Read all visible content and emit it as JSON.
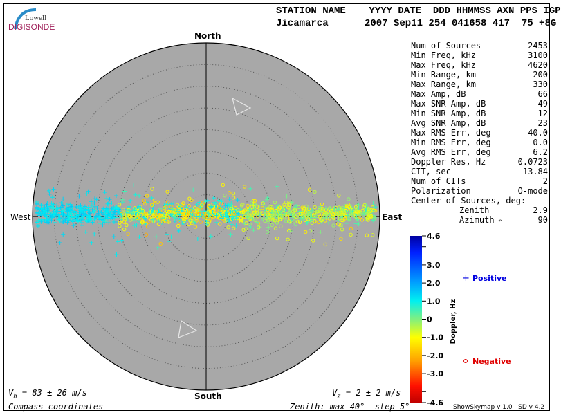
{
  "logo": {
    "line1": "Lowell",
    "line2": "DIGISONDE"
  },
  "header": {
    "labels": "STATION NAME    YYYY DATE  DDD HHMMSS AXN PPS IGP",
    "station": "Jicamarca",
    "values": "2007 Sep11 254 041658 417  75 +8G"
  },
  "stats": [
    {
      "label": "Num of Sources",
      "value": "2453"
    },
    {
      "label": "Min Freq, kHz",
      "value": "3100"
    },
    {
      "label": "Max Freq, kHz",
      "value": "4620"
    },
    {
      "label": "Min Range, km",
      "value": "200"
    },
    {
      "label": "Max Range, km",
      "value": "330"
    },
    {
      "label": "Max Amp, dB",
      "value": "66"
    },
    {
      "label": "Max SNR Amp, dB",
      "value": "49"
    },
    {
      "label": "Min SNR Amp, dB",
      "value": "12"
    },
    {
      "label": "Avg SNR Amp, dB",
      "value": "23"
    },
    {
      "label": "Max RMS Err, deg",
      "value": "40.0"
    },
    {
      "label": "Min RMS Err, deg",
      "value": "0.0"
    },
    {
      "label": "Avg RMS Err, deg",
      "value": "6.2"
    },
    {
      "label": "Doppler Res, Hz",
      "value": "0.0723"
    },
    {
      "label": "CIT, sec",
      "value": "13.84"
    },
    {
      "label": "Num of CITs",
      "value": "2"
    },
    {
      "label": "Polarization",
      "value": "O-mode"
    }
  ],
  "center": {
    "title": "Center of Sources, deg:",
    "zenith_label": "Zenith",
    "zenith": "2.9",
    "azimuth_label": "Azimuth",
    "azimuth_icon": "arrow-icon",
    "azimuth": "90"
  },
  "directions": {
    "north": "North",
    "south": "South",
    "west": "West",
    "east": "East"
  },
  "footer": {
    "vh": "V",
    "vh_sub": "h",
    "vh_val": " = 83 ± 26 m/s",
    "vz": "V",
    "vz_sub": "z",
    "vz_val": " = 2 ± 2 m/s",
    "coords": "Compass coordinates",
    "zenith": "Zenith: max 40°  step 5°",
    "version": "ShowSkymap v 1.0   SD v 4.2"
  },
  "chart_data": {
    "type": "scatter",
    "projection": "polar skymap",
    "zenith_max_deg": 40,
    "zenith_step_deg": 5,
    "num_sources": 2453,
    "distribution": "elongated East-West band along the horizontal axis",
    "colorbar": {
      "label": "Doppler, Hz",
      "range": [
        -4.6,
        4.6
      ],
      "tick_labels": [
        "4.6",
        "3.0",
        "2.0",
        "1.0",
        "0",
        "-1.0",
        "-2.0",
        "-3.0",
        "-4.6"
      ],
      "ticks": [
        4.6,
        3.0,
        2.0,
        1.0,
        0,
        -1.0,
        -2.0,
        -3.0,
        -4.6
      ]
    },
    "legend": [
      {
        "marker": "+",
        "label": "Positive",
        "color": "#0000e0"
      },
      {
        "marker": "o",
        "label": "Negative",
        "color": "#e00000"
      }
    ],
    "background_color": "#a8a8a8"
  }
}
